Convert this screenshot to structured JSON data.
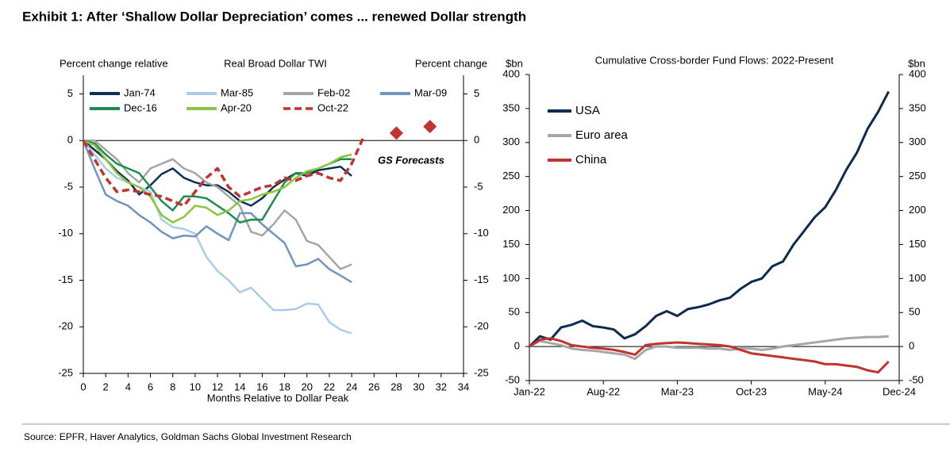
{
  "header": {
    "title": "Exhibit 1: After ‘Shallow Dollar Depreciation’ comes ... renewed Dollar strength"
  },
  "chart_data": [
    {
      "type": "line",
      "title": "Real Broad Dollar TWI",
      "y_label": "Percent change relative",
      "y2_label": "Percent change",
      "x_label": "Months Relative to Dollar Peak",
      "x": [
        0,
        1,
        2,
        3,
        4,
        5,
        6,
        7,
        8,
        9,
        10,
        11,
        12,
        13,
        14,
        15,
        16,
        17,
        18,
        19,
        20,
        21,
        22,
        23,
        24,
        25
      ],
      "xlim": [
        0,
        34
      ],
      "xticks": [
        0,
        2,
        4,
        6,
        8,
        10,
        12,
        14,
        16,
        18,
        20,
        22,
        24,
        26,
        28,
        30,
        32,
        34
      ],
      "ylim": [
        -25,
        7
      ],
      "yticks": [
        -25,
        -20,
        -15,
        -10,
        -5,
        0,
        5
      ],
      "y2lim": [
        -25,
        7
      ],
      "y2ticks": [
        -25,
        -20,
        -15,
        -10,
        -5,
        0,
        5
      ],
      "legend": "top",
      "series": [
        {
          "name": "Jan-74",
          "color": "#0e2f56",
          "values": [
            0,
            -1,
            -2,
            -3.3,
            -4.3,
            -5.8,
            -4.8,
            -3.6,
            -3,
            -4,
            -4.5,
            -4.8,
            -4.8,
            -5.5,
            -6.5,
            -7,
            -6.2,
            -5,
            -4.2,
            -3.5,
            -3.8,
            -3.2,
            -3,
            -2.8,
            -3.8,
            null
          ]
        },
        {
          "name": "Mar-85",
          "color": "#a8cce9",
          "values": [
            0,
            -1.5,
            -3,
            -4,
            -4.5,
            -5,
            -5.5,
            -8.5,
            -9.3,
            -9.5,
            -10,
            -12.5,
            -14,
            -15,
            -16.3,
            -15.8,
            -17,
            -18.2,
            -18.2,
            -18.1,
            -17.5,
            -17.6,
            -19.5,
            -20.3,
            -20.7,
            null
          ]
        },
        {
          "name": "Feb-02",
          "color": "#a5a5a5",
          "values": [
            0,
            0,
            -1,
            -2,
            -3.5,
            -4.5,
            -3,
            -2.5,
            -2,
            -3,
            -3.5,
            -4.5,
            -5,
            -6,
            -7,
            -9.8,
            -10.2,
            -9,
            -7.5,
            -8.5,
            -10.8,
            -11.2,
            -12.5,
            -13.8,
            -13.3,
            null
          ]
        },
        {
          "name": "Mar-09",
          "color": "#7094bf",
          "values": [
            0,
            -3,
            -5.8,
            -6.5,
            -7,
            -8,
            -8.8,
            -9.8,
            -10.5,
            -10.2,
            -10.3,
            -9.2,
            -10,
            -10.7,
            -7.8,
            -7.8,
            -9,
            -10,
            -11,
            -13.5,
            -13.3,
            -12.7,
            -13.8,
            -14.5,
            -15.2,
            null
          ]
        },
        {
          "name": "Dec-16",
          "color": "#1e8c4e",
          "values": [
            0,
            -0.3,
            -1.5,
            -2.5,
            -3,
            -3.5,
            -5,
            -6.5,
            -7.5,
            -6,
            -6,
            -6.2,
            -7,
            -7.8,
            -8.8,
            -8.5,
            -8.5,
            -6.5,
            -4.5,
            -3.5,
            -3.5,
            -3,
            -2.5,
            -2,
            -2,
            null
          ]
        },
        {
          "name": "Apr-20",
          "color": "#8cc63f",
          "values": [
            0,
            -0.5,
            -2,
            -3.5,
            -4.5,
            -5,
            -6,
            -8,
            -8.8,
            -8.2,
            -7,
            -7.2,
            -8,
            -7.5,
            -6.5,
            -6.3,
            -5.8,
            -5.5,
            -5,
            -4,
            -3.3,
            -3,
            -2.5,
            -1.8,
            -1.5,
            null
          ]
        },
        {
          "name": "Oct-22",
          "color": "#c0332f",
          "dashed": true,
          "values": [
            0,
            -2,
            -4,
            -5.5,
            -5.3,
            -5.5,
            -5.8,
            -6,
            -6.5,
            -7,
            -5.5,
            -4,
            -3,
            -5,
            -6,
            -5.5,
            -5,
            -4.8,
            -4,
            -4.3,
            -3.8,
            -3.5,
            -4,
            -4.3,
            -2.5,
            0.2
          ]
        }
      ],
      "forecast": {
        "label": "GS Forecasts",
        "color": "#c0332f",
        "x": [
          28,
          31
        ],
        "values": [
          0.8,
          1.5
        ]
      }
    },
    {
      "type": "line",
      "title": "Cumulative Cross-border Fund Flows: 2022-Present",
      "y_label": "$bn",
      "y2_label": "$bn",
      "categories": [
        "Jan-22",
        null,
        null,
        null,
        null,
        null,
        null,
        "Aug-22",
        null,
        null,
        null,
        null,
        null,
        null,
        "Mar-23",
        null,
        null,
        null,
        null,
        null,
        null,
        "Oct-23",
        null,
        null,
        null,
        null,
        null,
        null,
        "May-24",
        null,
        null,
        null,
        null,
        null,
        null,
        "Dec-24"
      ],
      "ylim": [
        -50,
        400
      ],
      "yticks": [
        -50,
        0,
        50,
        100,
        150,
        200,
        250,
        300,
        350,
        400
      ],
      "y2lim": [
        -50,
        400
      ],
      "y2ticks": [
        -50,
        0,
        50,
        100,
        150,
        200,
        250,
        300,
        350,
        400
      ],
      "legend": "top-left",
      "series": [
        {
          "name": "USA",
          "color": "#0d2b4f",
          "values": [
            0,
            15,
            10,
            28,
            32,
            38,
            30,
            28,
            25,
            12,
            18,
            30,
            45,
            52,
            45,
            55,
            58,
            62,
            68,
            72,
            85,
            95,
            100,
            118,
            125,
            150,
            170,
            190,
            205,
            230,
            260,
            285,
            320,
            345,
            375,
            null
          ]
        },
        {
          "name": "Euro area",
          "color": "#a6a6a6",
          "values": [
            0,
            8,
            5,
            2,
            -3,
            -5,
            -6,
            -8,
            -10,
            -12,
            -18,
            -5,
            0,
            0,
            -2,
            -2,
            -2,
            -3,
            -3,
            -5,
            -3,
            -3,
            -5,
            -3,
            0,
            2,
            4,
            6,
            8,
            10,
            12,
            13,
            14,
            14,
            15,
            null
          ]
        },
        {
          "name": "China",
          "color": "#c0332f",
          "values": [
            0,
            10,
            12,
            8,
            2,
            0,
            -2,
            -3,
            -5,
            -8,
            -12,
            2,
            4,
            5,
            6,
            5,
            4,
            3,
            2,
            0,
            -5,
            -10,
            -12,
            -14,
            -16,
            -18,
            -20,
            -22,
            -26,
            -26,
            -28,
            -30,
            -35,
            -38,
            -22,
            null
          ]
        }
      ]
    }
  ],
  "footer": {
    "source": "Source: EPFR, Haver Analytics, Goldman Sachs Global Investment Research"
  }
}
